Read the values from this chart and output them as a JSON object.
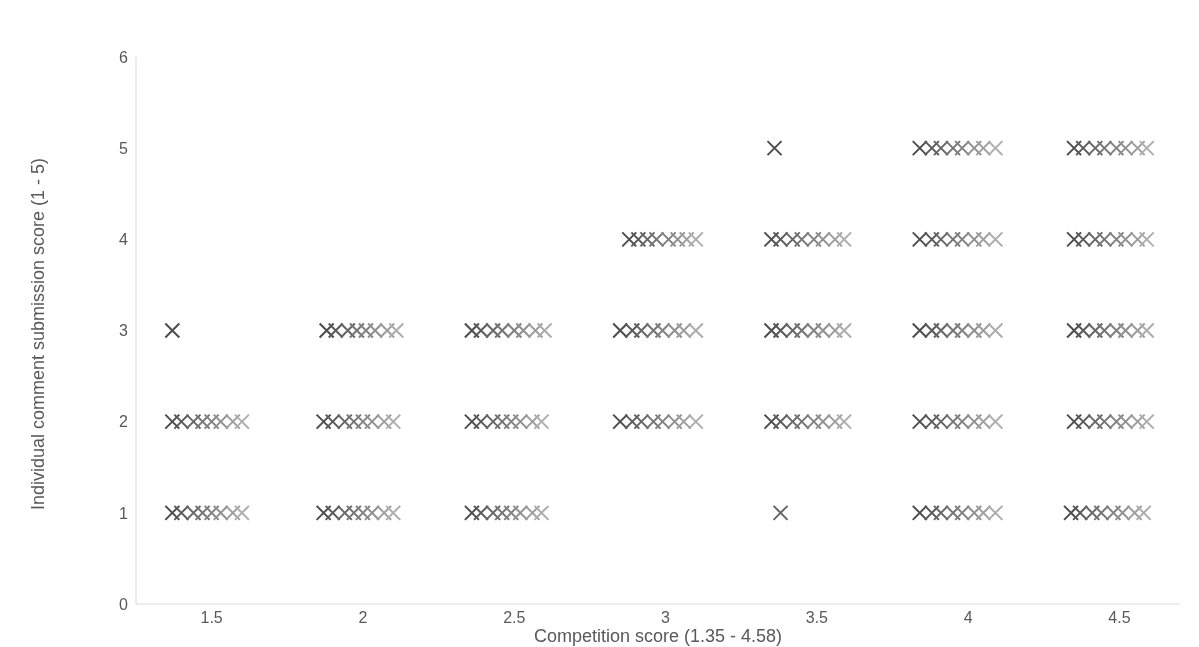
{
  "chart_data": {
    "type": "scatter",
    "xlabel": "Competition score (1.35 - 4.58)",
    "ylabel": "Individual comment submission score (1 - 5)",
    "xlim": [
      1.25,
      4.7
    ],
    "xticks": [
      1.5,
      2,
      2.5,
      3,
      3.5,
      4,
      4.5
    ],
    "ylim": [
      0,
      6
    ],
    "yticks": [
      0,
      1,
      2,
      3,
      4,
      5,
      6
    ],
    "grid": false,
    "legend": false,
    "marker": "cross",
    "series": [
      {
        "color": "#4d4d4d",
        "x": [
          1.37,
          1.37,
          1.88,
          1.87,
          1.87,
          2.36,
          2.36,
          2.36,
          2.88,
          2.85,
          2.85,
          3.35,
          3.35,
          3.35,
          3.84,
          3.84,
          3.84,
          3.84,
          3.84,
          4.35,
          4.35,
          4.35,
          4.35,
          4.34,
          1.37,
          3.36
        ],
        "values": [
          2,
          1,
          3,
          2,
          1,
          3,
          2,
          1,
          4,
          3,
          2,
          4,
          3,
          2,
          5,
          4,
          3,
          2,
          1,
          5,
          4,
          3,
          2,
          1,
          3,
          5
        ]
      },
      {
        "color": "#5a5a5a",
        "x": [
          1.4,
          1.4,
          1.91,
          1.9,
          1.9,
          2.39,
          2.39,
          2.39,
          2.91,
          2.89,
          2.89,
          3.38,
          3.38,
          3.38,
          3.88,
          3.88,
          3.88,
          3.88,
          3.88,
          4.38,
          4.38,
          4.38,
          4.38,
          4.37
        ],
        "values": [
          2,
          1,
          3,
          2,
          1,
          3,
          2,
          1,
          4,
          3,
          2,
          4,
          3,
          2,
          5,
          4,
          3,
          2,
          1,
          5,
          4,
          3,
          2,
          1
        ]
      },
      {
        "color": "#676767",
        "x": [
          1.44,
          1.44,
          1.95,
          1.94,
          1.94,
          2.43,
          2.43,
          2.43,
          2.94,
          2.92,
          2.92,
          3.42,
          3.42,
          3.42,
          3.91,
          3.91,
          3.91,
          3.91,
          3.91,
          4.42,
          4.42,
          4.42,
          4.42,
          4.41,
          3.38
        ],
        "values": [
          2,
          1,
          3,
          2,
          1,
          3,
          2,
          1,
          4,
          3,
          2,
          4,
          3,
          2,
          5,
          4,
          3,
          2,
          1,
          5,
          4,
          3,
          2,
          1,
          1
        ]
      },
      {
        "color": "#757575",
        "x": [
          1.47,
          1.47,
          1.98,
          1.97,
          1.97,
          2.46,
          2.46,
          2.46,
          2.97,
          2.96,
          2.96,
          3.45,
          3.45,
          3.45,
          3.95,
          3.95,
          3.95,
          3.95,
          3.95,
          4.45,
          4.45,
          4.45,
          4.45,
          4.44
        ],
        "values": [
          2,
          1,
          3,
          2,
          1,
          3,
          2,
          1,
          4,
          3,
          2,
          4,
          3,
          2,
          5,
          4,
          3,
          2,
          1,
          5,
          4,
          3,
          2,
          1
        ]
      },
      {
        "color": "#828282",
        "x": [
          1.5,
          1.5,
          2.01,
          2.0,
          2.0,
          2.5,
          2.49,
          2.49,
          3.01,
          2.99,
          2.99,
          3.49,
          3.49,
          3.49,
          3.98,
          3.98,
          3.98,
          3.98,
          3.98,
          4.49,
          4.49,
          4.49,
          4.49,
          4.48
        ],
        "values": [
          2,
          1,
          3,
          2,
          1,
          3,
          2,
          1,
          4,
          3,
          2,
          4,
          3,
          2,
          5,
          4,
          3,
          2,
          1,
          5,
          4,
          3,
          2,
          1
        ]
      },
      {
        "color": "#909090",
        "x": [
          1.53,
          1.53,
          2.04,
          2.03,
          2.03,
          2.53,
          2.52,
          2.52,
          3.04,
          3.03,
          3.03,
          3.52,
          3.52,
          3.52,
          4.02,
          4.02,
          4.02,
          4.02,
          4.02,
          4.52,
          4.52,
          4.52,
          4.52,
          4.51
        ],
        "values": [
          2,
          1,
          3,
          2,
          1,
          3,
          2,
          1,
          4,
          3,
          2,
          4,
          3,
          2,
          5,
          4,
          3,
          2,
          1,
          5,
          4,
          3,
          2,
          1
        ]
      },
      {
        "color": "#9e9e9e",
        "x": [
          1.57,
          1.57,
          2.08,
          2.07,
          2.07,
          2.57,
          2.56,
          2.56,
          3.07,
          3.06,
          3.06,
          3.56,
          3.56,
          3.56,
          4.05,
          4.05,
          4.05,
          4.05,
          4.05,
          4.56,
          4.56,
          4.56,
          4.56,
          4.55
        ],
        "values": [
          2,
          1,
          3,
          2,
          1,
          3,
          2,
          1,
          4,
          3,
          2,
          4,
          3,
          2,
          5,
          4,
          3,
          2,
          1,
          5,
          4,
          3,
          2,
          1
        ]
      },
      {
        "color": "#adadad",
        "x": [
          1.6,
          1.6,
          2.11,
          2.1,
          2.1,
          2.6,
          2.59,
          2.59,
          3.1,
          3.1,
          3.1,
          3.59,
          3.59,
          3.59,
          4.09,
          4.09,
          4.09,
          4.09,
          4.09,
          4.59,
          4.59,
          4.59,
          4.59,
          4.58
        ],
        "values": [
          2,
          1,
          3,
          2,
          1,
          3,
          2,
          1,
          4,
          3,
          2,
          4,
          3,
          2,
          5,
          4,
          3,
          2,
          1,
          5,
          4,
          3,
          2,
          1
        ]
      }
    ]
  }
}
